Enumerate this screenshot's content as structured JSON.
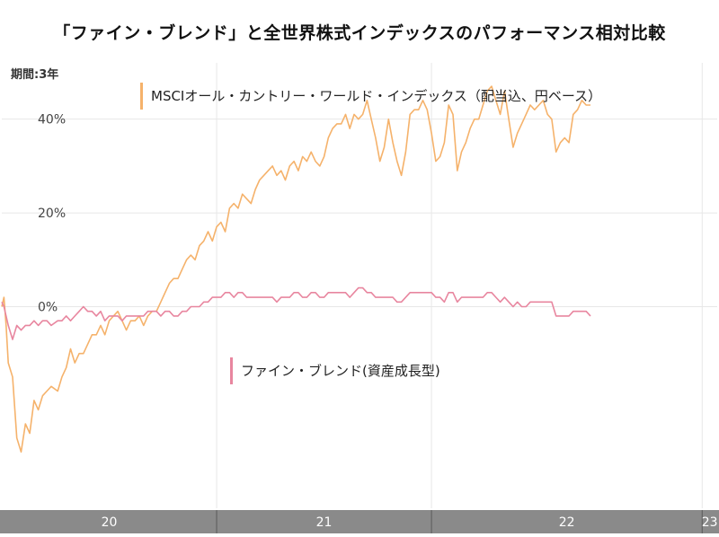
{
  "header": {
    "title": "「ファイン・ブレンド」と全世界株式インデックスのパフォーマンス相対比較",
    "period": "期間:3年"
  },
  "chart_data": {
    "type": "line",
    "title": "「ファイン・ブレンド」と全世界株式インデックスのパフォーマンス相対比較",
    "ylim": [
      -43,
      52
    ],
    "yticks": [
      0,
      20,
      40
    ],
    "ytick_labels": [
      "0%",
      "20%",
      "40%"
    ],
    "xlim": [
      2019.72,
      2023.05
    ],
    "xticks": [
      {
        "label": "20",
        "start": 2019.72,
        "end": 2020.72
      },
      {
        "label": "21",
        "start": 2020.72,
        "end": 2021.72
      },
      {
        "label": "22",
        "start": 2021.72,
        "end": 2022.98
      },
      {
        "label": "23",
        "start": 2022.98,
        "end": 2023.05
      }
    ],
    "grid": true,
    "legend_placement": "inline",
    "series": [
      {
        "name": "MSCIオール・カントリー・ワールド・インデックス（配当込、円ベース）",
        "color": "#f5b26b",
        "points": [
          [
            2019.72,
            0
          ],
          [
            2019.73,
            2
          ],
          [
            2019.74,
            -4
          ],
          [
            2019.75,
            -12
          ],
          [
            2019.77,
            -15
          ],
          [
            2019.79,
            -28
          ],
          [
            2019.81,
            -31
          ],
          [
            2019.83,
            -25
          ],
          [
            2019.85,
            -27
          ],
          [
            2019.87,
            -20
          ],
          [
            2019.89,
            -22
          ],
          [
            2019.91,
            -19
          ],
          [
            2019.93,
            -18
          ],
          [
            2019.95,
            -17
          ],
          [
            2019.98,
            -18
          ],
          [
            2020.0,
            -15
          ],
          [
            2020.02,
            -13
          ],
          [
            2020.04,
            -9
          ],
          [
            2020.06,
            -12
          ],
          [
            2020.08,
            -10
          ],
          [
            2020.1,
            -10
          ],
          [
            2020.12,
            -8
          ],
          [
            2020.14,
            -6
          ],
          [
            2020.16,
            -6
          ],
          [
            2020.18,
            -4
          ],
          [
            2020.2,
            -6
          ],
          [
            2020.22,
            -3
          ],
          [
            2020.24,
            -2
          ],
          [
            2020.26,
            -1
          ],
          [
            2020.28,
            -3
          ],
          [
            2020.3,
            -5
          ],
          [
            2020.32,
            -3
          ],
          [
            2020.34,
            -3
          ],
          [
            2020.36,
            -2
          ],
          [
            2020.38,
            -4
          ],
          [
            2020.4,
            -2
          ],
          [
            2020.42,
            -1
          ],
          [
            2020.44,
            -1
          ],
          [
            2020.46,
            1
          ],
          [
            2020.48,
            3
          ],
          [
            2020.5,
            5
          ],
          [
            2020.52,
            6
          ],
          [
            2020.54,
            6
          ],
          [
            2020.56,
            8
          ],
          [
            2020.58,
            10
          ],
          [
            2020.6,
            11
          ],
          [
            2020.62,
            10
          ],
          [
            2020.64,
            13
          ],
          [
            2020.66,
            14
          ],
          [
            2020.68,
            16
          ],
          [
            2020.7,
            14
          ],
          [
            2020.72,
            17
          ],
          [
            2020.74,
            18
          ],
          [
            2020.76,
            16
          ],
          [
            2020.78,
            21
          ],
          [
            2020.8,
            22
          ],
          [
            2020.82,
            21
          ],
          [
            2020.84,
            24
          ],
          [
            2020.86,
            23
          ],
          [
            2020.88,
            22
          ],
          [
            2020.9,
            25
          ],
          [
            2020.92,
            27
          ],
          [
            2020.94,
            28
          ],
          [
            2020.96,
            29
          ],
          [
            2020.98,
            30
          ],
          [
            2021.0,
            28
          ],
          [
            2021.02,
            29
          ],
          [
            2021.04,
            27
          ],
          [
            2021.06,
            30
          ],
          [
            2021.08,
            31
          ],
          [
            2021.1,
            29
          ],
          [
            2021.12,
            32
          ],
          [
            2021.14,
            31
          ],
          [
            2021.16,
            33
          ],
          [
            2021.18,
            31
          ],
          [
            2021.2,
            30
          ],
          [
            2021.22,
            32
          ],
          [
            2021.24,
            36
          ],
          [
            2021.26,
            38
          ],
          [
            2021.28,
            39
          ],
          [
            2021.3,
            39
          ],
          [
            2021.32,
            41
          ],
          [
            2021.34,
            38
          ],
          [
            2021.36,
            41
          ],
          [
            2021.38,
            40
          ],
          [
            2021.4,
            41
          ],
          [
            2021.42,
            44
          ],
          [
            2021.44,
            40
          ],
          [
            2021.46,
            36
          ],
          [
            2021.48,
            31
          ],
          [
            2021.5,
            34
          ],
          [
            2021.52,
            40
          ],
          [
            2021.54,
            35
          ],
          [
            2021.56,
            31
          ],
          [
            2021.58,
            28
          ],
          [
            2021.6,
            33
          ],
          [
            2021.62,
            41
          ],
          [
            2021.64,
            42
          ],
          [
            2021.66,
            42
          ],
          [
            2021.68,
            44
          ],
          [
            2021.7,
            42
          ],
          [
            2021.72,
            37
          ],
          [
            2021.74,
            31
          ],
          [
            2021.76,
            32
          ],
          [
            2021.78,
            35
          ],
          [
            2021.8,
            43
          ],
          [
            2021.82,
            41
          ],
          [
            2021.84,
            29
          ],
          [
            2021.86,
            33
          ],
          [
            2021.88,
            35
          ],
          [
            2021.9,
            38
          ],
          [
            2021.92,
            40
          ],
          [
            2021.94,
            40
          ],
          [
            2021.96,
            43
          ],
          [
            2021.98,
            46
          ],
          [
            2022.0,
            47
          ],
          [
            2022.02,
            44
          ],
          [
            2022.04,
            41
          ],
          [
            2022.06,
            46
          ],
          [
            2022.08,
            40
          ],
          [
            2022.1,
            34
          ],
          [
            2022.12,
            37
          ],
          [
            2022.14,
            39
          ],
          [
            2022.16,
            41
          ],
          [
            2022.18,
            43
          ],
          [
            2022.2,
            42
          ],
          [
            2022.22,
            43
          ],
          [
            2022.24,
            44
          ],
          [
            2022.26,
            41
          ],
          [
            2022.28,
            40
          ],
          [
            2022.3,
            33
          ],
          [
            2022.32,
            35
          ],
          [
            2022.34,
            36
          ],
          [
            2022.36,
            35
          ],
          [
            2022.38,
            41
          ],
          [
            2022.4,
            42
          ],
          [
            2022.42,
            44
          ],
          [
            2022.44,
            43
          ],
          [
            2022.46,
            43
          ]
        ]
      },
      {
        "name": "ファイン・ブレンド(資産成長型)",
        "color": "#e8869f",
        "points": [
          [
            2019.72,
            1
          ],
          [
            2019.73,
            0
          ],
          [
            2019.74,
            -2
          ],
          [
            2019.75,
            -4
          ],
          [
            2019.77,
            -7
          ],
          [
            2019.79,
            -4
          ],
          [
            2019.81,
            -5
          ],
          [
            2019.83,
            -4
          ],
          [
            2019.85,
            -4
          ],
          [
            2019.87,
            -3
          ],
          [
            2019.89,
            -4
          ],
          [
            2019.91,
            -3
          ],
          [
            2019.93,
            -3
          ],
          [
            2019.95,
            -4
          ],
          [
            2019.98,
            -3
          ],
          [
            2020.0,
            -3
          ],
          [
            2020.02,
            -2
          ],
          [
            2020.04,
            -3
          ],
          [
            2020.06,
            -2
          ],
          [
            2020.08,
            -1
          ],
          [
            2020.1,
            0
          ],
          [
            2020.12,
            -1
          ],
          [
            2020.14,
            -1
          ],
          [
            2020.16,
            -2
          ],
          [
            2020.18,
            -1
          ],
          [
            2020.2,
            -3
          ],
          [
            2020.22,
            -2
          ],
          [
            2020.24,
            -2
          ],
          [
            2020.26,
            -2
          ],
          [
            2020.28,
            -3
          ],
          [
            2020.3,
            -2
          ],
          [
            2020.32,
            -2
          ],
          [
            2020.34,
            -2
          ],
          [
            2020.36,
            -2
          ],
          [
            2020.38,
            -2
          ],
          [
            2020.4,
            -1
          ],
          [
            2020.42,
            -1
          ],
          [
            2020.44,
            -1
          ],
          [
            2020.46,
            -2
          ],
          [
            2020.48,
            -1
          ],
          [
            2020.5,
            -1
          ],
          [
            2020.52,
            -2
          ],
          [
            2020.54,
            -2
          ],
          [
            2020.56,
            -1
          ],
          [
            2020.58,
            -1
          ],
          [
            2020.6,
            0
          ],
          [
            2020.62,
            0
          ],
          [
            2020.64,
            0
          ],
          [
            2020.66,
            1
          ],
          [
            2020.68,
            1
          ],
          [
            2020.7,
            2
          ],
          [
            2020.72,
            2
          ],
          [
            2020.74,
            2
          ],
          [
            2020.76,
            3
          ],
          [
            2020.78,
            3
          ],
          [
            2020.8,
            2
          ],
          [
            2020.82,
            3
          ],
          [
            2020.84,
            3
          ],
          [
            2020.86,
            2
          ],
          [
            2020.88,
            2
          ],
          [
            2020.9,
            2
          ],
          [
            2020.92,
            2
          ],
          [
            2020.94,
            2
          ],
          [
            2020.96,
            2
          ],
          [
            2020.98,
            2
          ],
          [
            2021.0,
            1
          ],
          [
            2021.02,
            2
          ],
          [
            2021.04,
            2
          ],
          [
            2021.06,
            2
          ],
          [
            2021.08,
            3
          ],
          [
            2021.1,
            3
          ],
          [
            2021.12,
            2
          ],
          [
            2021.14,
            2
          ],
          [
            2021.16,
            3
          ],
          [
            2021.18,
            3
          ],
          [
            2021.2,
            2
          ],
          [
            2021.22,
            2
          ],
          [
            2021.24,
            3
          ],
          [
            2021.26,
            3
          ],
          [
            2021.28,
            3
          ],
          [
            2021.3,
            3
          ],
          [
            2021.32,
            3
          ],
          [
            2021.34,
            2
          ],
          [
            2021.36,
            3
          ],
          [
            2021.38,
            4
          ],
          [
            2021.4,
            4
          ],
          [
            2021.42,
            3
          ],
          [
            2021.44,
            3
          ],
          [
            2021.46,
            2
          ],
          [
            2021.48,
            2
          ],
          [
            2021.5,
            2
          ],
          [
            2021.52,
            2
          ],
          [
            2021.54,
            2
          ],
          [
            2021.56,
            1
          ],
          [
            2021.58,
            1
          ],
          [
            2021.6,
            2
          ],
          [
            2021.62,
            3
          ],
          [
            2021.64,
            3
          ],
          [
            2021.66,
            3
          ],
          [
            2021.68,
            3
          ],
          [
            2021.7,
            3
          ],
          [
            2021.72,
            3
          ],
          [
            2021.74,
            2
          ],
          [
            2021.76,
            2
          ],
          [
            2021.78,
            1
          ],
          [
            2021.8,
            3
          ],
          [
            2021.82,
            3
          ],
          [
            2021.84,
            1
          ],
          [
            2021.86,
            2
          ],
          [
            2021.88,
            2
          ],
          [
            2021.9,
            2
          ],
          [
            2021.92,
            2
          ],
          [
            2021.94,
            2
          ],
          [
            2021.96,
            2
          ],
          [
            2021.98,
            3
          ],
          [
            2022.0,
            3
          ],
          [
            2022.02,
            2
          ],
          [
            2022.04,
            1
          ],
          [
            2022.06,
            2
          ],
          [
            2022.08,
            1
          ],
          [
            2022.1,
            0
          ],
          [
            2022.12,
            1
          ],
          [
            2022.14,
            0
          ],
          [
            2022.16,
            0
          ],
          [
            2022.18,
            1
          ],
          [
            2022.2,
            1
          ],
          [
            2022.22,
            1
          ],
          [
            2022.24,
            1
          ],
          [
            2022.26,
            1
          ],
          [
            2022.28,
            1
          ],
          [
            2022.3,
            -2
          ],
          [
            2022.32,
            -2
          ],
          [
            2022.34,
            -2
          ],
          [
            2022.36,
            -2
          ],
          [
            2022.38,
            -1
          ],
          [
            2022.4,
            -1
          ],
          [
            2022.42,
            -1
          ],
          [
            2022.44,
            -1
          ],
          [
            2022.46,
            -2
          ]
        ]
      }
    ],
    "legend": [
      {
        "label": "MSCIオール・カントリー・ワールド・インデックス（配当込、円ベース）",
        "color": "#f5b26b"
      },
      {
        "label": "ファイン・ブレンド(資産成長型)",
        "color": "#e8869f"
      }
    ]
  }
}
